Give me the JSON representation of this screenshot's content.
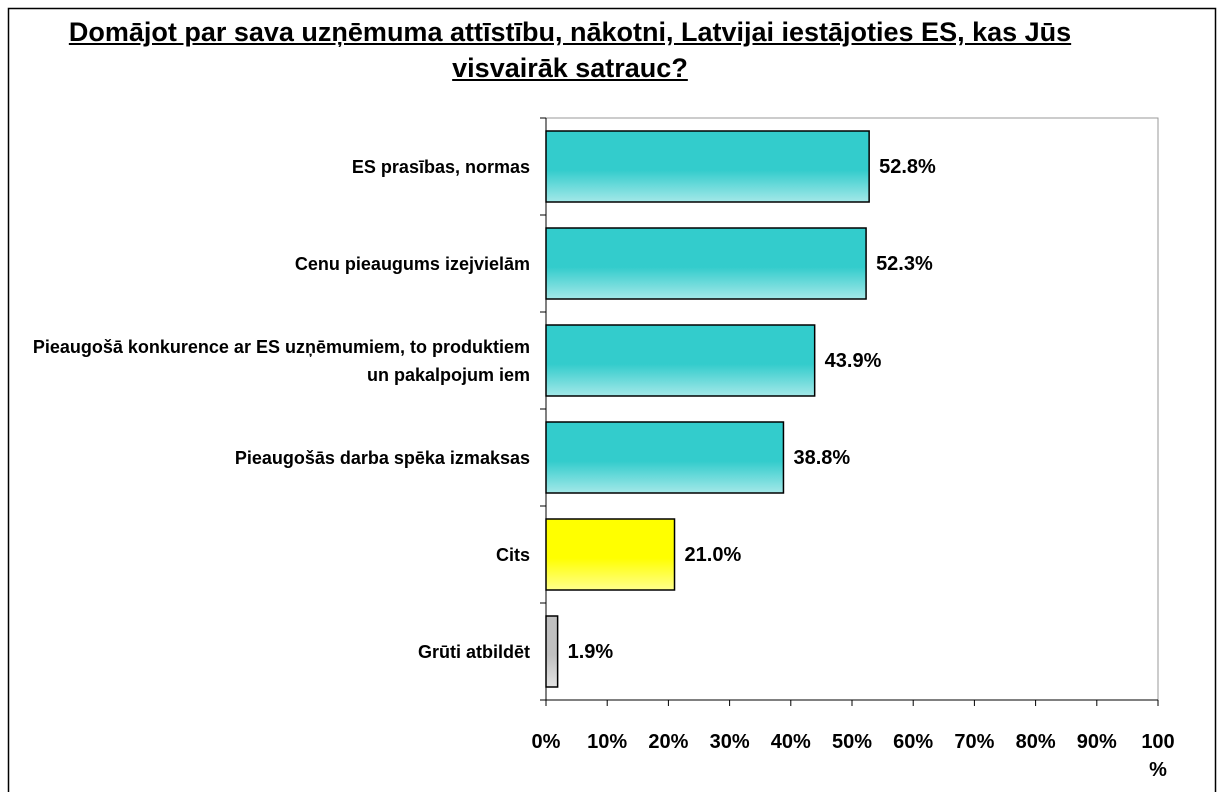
{
  "chart_data": {
    "type": "bar",
    "orientation": "horizontal",
    "title": "Domājot par sava uzņēmuma attīstību, nākotni, Latvijai iestājoties ES, kas Jūs visvairāk satrauc?",
    "categories": [
      "ES prasības, normas",
      "Cenu pieaugums izejvielām",
      "Pieaugošā konkurence ar ES uzņēmumiem, to produktiem un pakalpojum iem",
      "Pieaugošās darba spēka izmaksas",
      "Cits",
      "Grūti atbildēt"
    ],
    "values": [
      52.8,
      52.3,
      43.9,
      38.8,
      21.0,
      1.9
    ],
    "value_labels": [
      "52.8%",
      "52.3%",
      "43.9%",
      "38.8%",
      "21.0%",
      "1.9%"
    ],
    "colors": [
      "#33cccc",
      "#33cccc",
      "#33cccc",
      "#33cccc",
      "#ffff00",
      "#c0c0c0"
    ],
    "xlim": [
      0,
      100
    ],
    "xticks": [
      {
        "value": 0,
        "label": "0%"
      },
      {
        "value": 10,
        "label": "10%"
      },
      {
        "value": 20,
        "label": "20%"
      },
      {
        "value": 30,
        "label": "30%"
      },
      {
        "value": 40,
        "label": "40%"
      },
      {
        "value": 50,
        "label": "50%"
      },
      {
        "value": 60,
        "label": "60%"
      },
      {
        "value": 70,
        "label": "70%"
      },
      {
        "value": 80,
        "label": "80%"
      },
      {
        "value": 90,
        "label": "90%"
      },
      {
        "value": 100,
        "label": "100 %"
      }
    ],
    "grid": false
  }
}
